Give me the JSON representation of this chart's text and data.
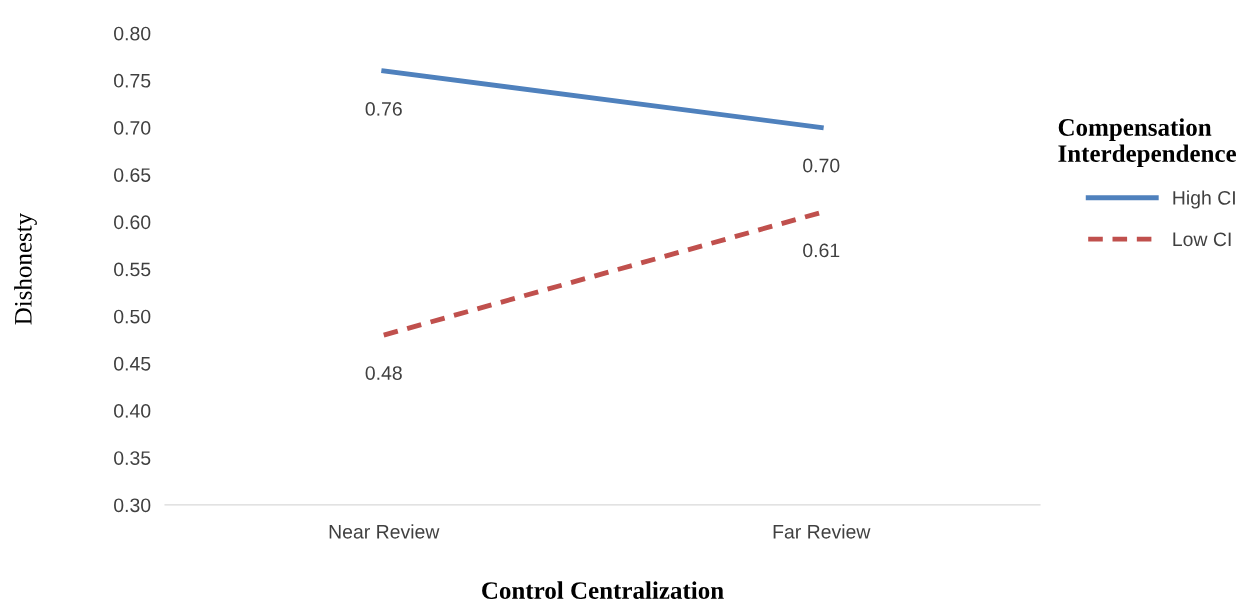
{
  "chart_data": {
    "type": "line",
    "xlabel": "Control Centralization",
    "ylabel": "Dishonesty",
    "legend_title": "Compensation Interdependence",
    "categories": [
      "Near Review",
      "Far Review"
    ],
    "series": [
      {
        "name": "High CI",
        "color": "#4f81bd",
        "values": [
          0.76,
          0.7
        ],
        "value_labels": [
          "0.76",
          "0.70"
        ],
        "line_style": "solid"
      },
      {
        "name": "Low CI",
        "color": "#c0504d",
        "values": [
          0.48,
          0.61
        ],
        "value_labels": [
          "0.48",
          "0.61"
        ],
        "line_style": "dashed"
      }
    ],
    "ylim": [
      0.3,
      0.8
    ],
    "yticks": [
      {
        "value": 0.3,
        "label": "0.30"
      },
      {
        "value": 0.35,
        "label": "0.35"
      },
      {
        "value": 0.4,
        "label": "0.40"
      },
      {
        "value": 0.45,
        "label": "0.45"
      },
      {
        "value": 0.5,
        "label": "0.50"
      },
      {
        "value": 0.55,
        "label": "0.55"
      },
      {
        "value": 0.6,
        "label": "0.60"
      },
      {
        "value": 0.65,
        "label": "0.65"
      },
      {
        "value": 0.7,
        "label": "0.70"
      },
      {
        "value": 0.75,
        "label": "0.75"
      },
      {
        "value": 0.8,
        "label": "0.80"
      }
    ],
    "grid": false,
    "legend": "right",
    "marker": "none"
  }
}
